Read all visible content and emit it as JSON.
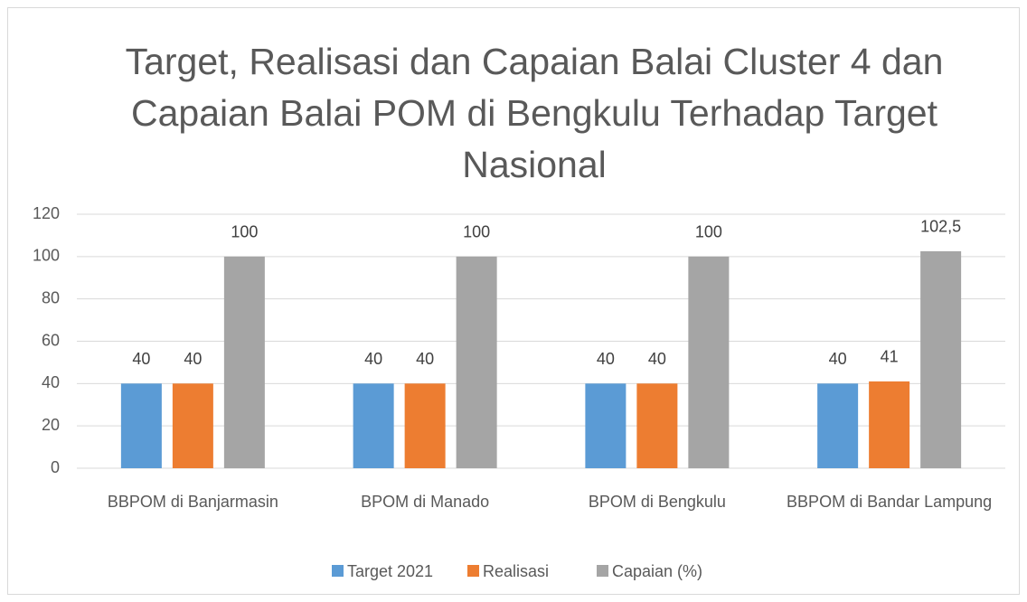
{
  "chart_data": {
    "type": "bar",
    "title": "Target, Realisasi dan Capaian Balai Cluster 4 dan Capaian Balai POM di Bengkulu Terhadap Target Nasional",
    "categories": [
      "BBPOM di Banjarmasin",
      "BPOM di Manado",
      "BPOM di Bengkulu",
      "BBPOM di Bandar Lampung"
    ],
    "series": [
      {
        "name": "Target 2021",
        "color": "#5b9bd5",
        "values": [
          40,
          40,
          40,
          40
        ]
      },
      {
        "name": "Realisasi",
        "color": "#ed7d31",
        "values": [
          40,
          40,
          40,
          41
        ]
      },
      {
        "name": "Capaian (%)",
        "color": "#a5a5a5",
        "values": [
          100,
          100,
          100,
          102.5
        ],
        "value_labels": [
          "100",
          "100",
          "100",
          "102,5"
        ]
      }
    ],
    "ylim": [
      0,
      120
    ],
    "yticks": [
      0,
      20,
      40,
      60,
      80,
      100,
      120
    ],
    "grid": true,
    "legend": "bottom"
  }
}
